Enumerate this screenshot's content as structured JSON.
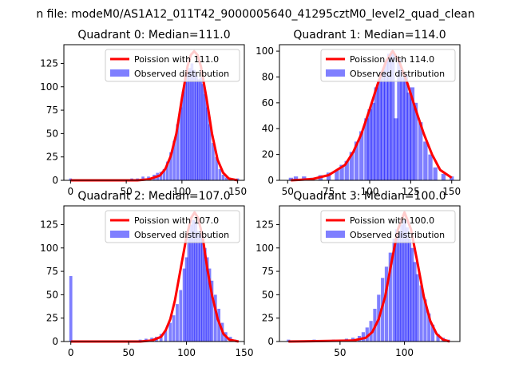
{
  "suptitle": "n file: modeM0/AS1A12_011T42_9000005640_41295cztM0_level2_quad_clean",
  "chart_data": [
    {
      "type": "histogram",
      "title": "Quadrant 0: Median=111.0",
      "xlim": [
        -6,
        156
      ],
      "ylim": [
        0,
        145
      ],
      "xticks": [
        0,
        50,
        100,
        150
      ],
      "yticks": [
        0,
        25,
        50,
        75,
        100,
        125
      ],
      "legend_position": "top-right",
      "legend": [
        "Poission with 111.0",
        "Observed distribution"
      ],
      "median": 111.0,
      "hist": {
        "x": [
          0,
          55,
          60,
          65,
          70,
          75,
          78,
          81,
          84,
          87,
          90,
          93,
          96,
          99,
          101,
          103,
          105,
          107,
          109,
          111,
          113,
          115,
          117,
          119,
          121,
          123,
          125,
          128,
          131,
          134,
          137,
          140,
          145,
          150
        ],
        "y": [
          2,
          2,
          2,
          4,
          4,
          6,
          8,
          9,
          12,
          20,
          30,
          42,
          60,
          78,
          95,
          105,
          115,
          120,
          125,
          118,
          112,
          108,
          110,
          103,
          92,
          78,
          60,
          40,
          25,
          12,
          6,
          3,
          2,
          2
        ]
      },
      "curve": {
        "x": [
          0,
          60,
          70,
          80,
          85,
          90,
          95,
          100,
          105,
          108,
          111,
          114,
          117,
          122,
          127,
          132,
          137,
          142,
          150
        ],
        "y": [
          0,
          0,
          1,
          5,
          12,
          26,
          50,
          88,
          122,
          134,
          138,
          134,
          122,
          88,
          50,
          22,
          8,
          2,
          0
        ]
      }
    },
    {
      "type": "histogram",
      "title": "Quadrant 1: Median=114.0",
      "xlim": [
        45,
        155
      ],
      "ylim": [
        0,
        105
      ],
      "xticks": [
        50,
        75,
        100,
        125,
        150
      ],
      "yticks": [
        0,
        20,
        40,
        60,
        80,
        100
      ],
      "legend_position": "top-right",
      "legend": [
        "Poission with 114.0",
        "Observed distribution"
      ],
      "median": 114.0,
      "hist": {
        "x": [
          52,
          55,
          60,
          65,
          70,
          75,
          80,
          83,
          86,
          89,
          92,
          95,
          98,
          100,
          102,
          104,
          106,
          108,
          110,
          112,
          114,
          116,
          118,
          120,
          122,
          124,
          126,
          128,
          131,
          134,
          137,
          140,
          145,
          150
        ],
        "y": [
          2,
          3,
          3,
          2,
          4,
          6,
          8,
          12,
          15,
          22,
          30,
          38,
          48,
          55,
          60,
          72,
          78,
          85,
          92,
          98,
          100,
          48,
          94,
          80,
          82,
          68,
          72,
          60,
          45,
          30,
          20,
          10,
          5,
          3
        ]
      },
      "curve": {
        "x": [
          52,
          65,
          75,
          85,
          90,
          95,
          100,
          105,
          110,
          114,
          118,
          123,
          128,
          133,
          138,
          143,
          150
        ],
        "y": [
          0,
          1,
          4,
          12,
          22,
          36,
          55,
          75,
          92,
          100,
          92,
          75,
          55,
          36,
          20,
          8,
          2
        ]
      }
    },
    {
      "type": "histogram",
      "title": "Quadrant 2: Median=107.0",
      "xlim": [
        -6,
        150
      ],
      "ylim": [
        0,
        145
      ],
      "xticks": [
        0,
        50,
        100,
        150
      ],
      "yticks": [
        0,
        25,
        50,
        75,
        100,
        125
      ],
      "legend_position": "top-right",
      "legend": [
        "Poission with 107.0",
        "Observed distribution"
      ],
      "median": 107.0,
      "hist": {
        "x": [
          0,
          60,
          65,
          70,
          74,
          78,
          82,
          86,
          89,
          92,
          95,
          98,
          100,
          102,
          104,
          106,
          108,
          110,
          112,
          114,
          116,
          118,
          120,
          122,
          125,
          128,
          131,
          134,
          138,
          142
        ],
        "y": [
          70,
          2,
          3,
          4,
          5,
          8,
          12,
          20,
          28,
          40,
          55,
          78,
          90,
          112,
          125,
          130,
          128,
          118,
          115,
          110,
          100,
          90,
          78,
          65,
          50,
          35,
          20,
          10,
          5,
          2
        ]
      },
      "curve": {
        "x": [
          0,
          60,
          70,
          78,
          82,
          86,
          90,
          95,
          100,
          104,
          107,
          110,
          114,
          118,
          122,
          127,
          132,
          137,
          145
        ],
        "y": [
          0,
          0,
          1,
          5,
          12,
          24,
          44,
          78,
          112,
          132,
          138,
          132,
          112,
          78,
          50,
          24,
          8,
          2,
          0
        ]
      }
    },
    {
      "type": "histogram",
      "title": "Quadrant 3: Median=100.0",
      "xlim": [
        3,
        143
      ],
      "ylim": [
        0,
        145
      ],
      "xticks": [
        50,
        100
      ],
      "yticks": [
        0,
        25,
        50,
        75,
        100,
        125
      ],
      "legend_position": "top-right",
      "legend": [
        "Poission with 100.0",
        "Observed distribution"
      ],
      "median": 100.0,
      "hist": {
        "x": [
          10,
          30,
          45,
          55,
          60,
          65,
          68,
          71,
          74,
          77,
          80,
          83,
          86,
          89,
          92,
          94,
          96,
          98,
          100,
          102,
          104,
          106,
          108,
          110,
          113,
          116,
          119,
          122,
          126,
          130,
          134
        ],
        "y": [
          2,
          2,
          2,
          3,
          4,
          6,
          10,
          15,
          22,
          35,
          50,
          68,
          80,
          95,
          110,
          120,
          118,
          125,
          130,
          122,
          110,
          100,
          85,
          72,
          60,
          45,
          30,
          18,
          8,
          4,
          2
        ]
      },
      "curve": {
        "x": [
          10,
          60,
          70,
          75,
          80,
          85,
          90,
          95,
          100,
          105,
          110,
          115,
          120,
          125,
          130,
          135
        ],
        "y": [
          0,
          1,
          4,
          10,
          24,
          48,
          85,
          120,
          138,
          120,
          85,
          48,
          22,
          8,
          2,
          0
        ]
      }
    }
  ]
}
